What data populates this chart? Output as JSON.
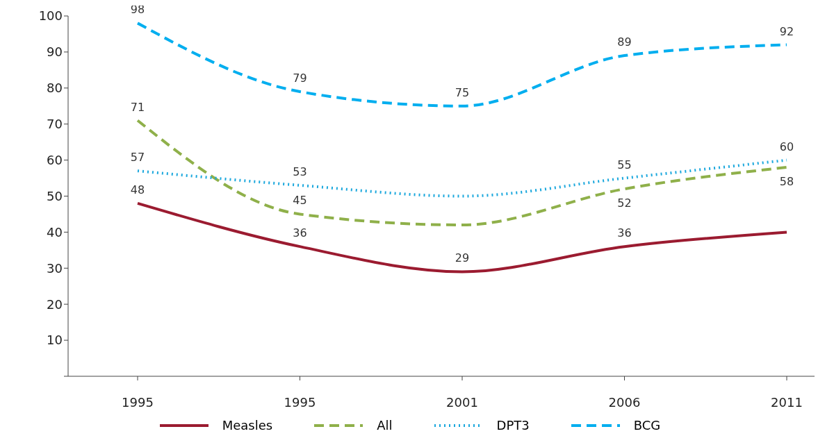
{
  "chart_data": {
    "type": "line",
    "categories": [
      "1995",
      "1995",
      "2001",
      "2006",
      "2011"
    ],
    "series": [
      {
        "name": "Measles",
        "color": "#9b1b30",
        "line_style": "solid",
        "values": [
          48,
          36,
          29,
          36,
          40
        ],
        "value_labels": [
          "48",
          "36",
          "29",
          "36",
          null
        ]
      },
      {
        "name": "All",
        "color": "#8fb04a",
        "line_style": "dashed",
        "values": [
          71,
          45,
          42,
          52,
          58
        ],
        "value_labels": [
          "71",
          "45",
          null,
          "52",
          "58"
        ]
      },
      {
        "name": "DPT3",
        "color": "#1ca8dd",
        "line_style": "dotted",
        "values": [
          57,
          53,
          50,
          55,
          60
        ],
        "value_labels": [
          "57",
          "53",
          null,
          "55",
          "60"
        ]
      },
      {
        "name": "BCG",
        "color": "#00aeef",
        "line_style": "dashed",
        "values": [
          98,
          79,
          75,
          89,
          92
        ],
        "value_labels": [
          "98",
          "79",
          "75",
          "89",
          "92"
        ]
      }
    ],
    "ylim": [
      0,
      100
    ],
    "yticks": [
      {
        "value": 0,
        "label": null
      },
      10,
      20,
      30,
      40,
      50,
      60,
      70,
      80,
      90,
      100
    ],
    "legend": "bottom",
    "marker": "none"
  }
}
